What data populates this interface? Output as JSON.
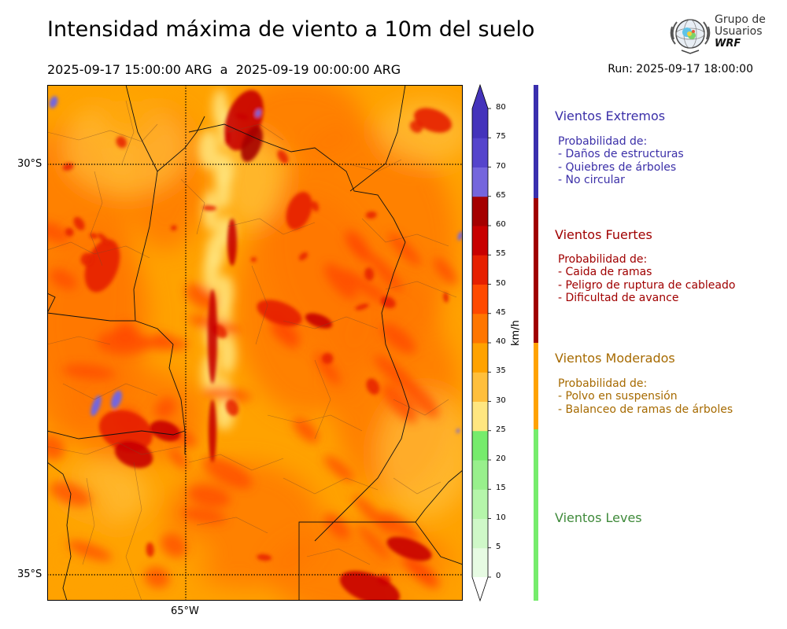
{
  "header": {
    "title": "Intensidad máxima de viento a 10m del suelo",
    "period": "2025-09-17 15:00:00 ARG  a  2025-09-19 00:00:00 ARG",
    "run": "Run: 2025-09-17 18:00:00"
  },
  "logo": {
    "line1": "Grupo de",
    "line2": "Usuarios",
    "line3": "WRF"
  },
  "map": {
    "lat_labels": [
      "30°S",
      "35°S"
    ],
    "lon_labels": [
      "65°W"
    ]
  },
  "colorbar": {
    "unit": "km/h",
    "ticks": [
      "0",
      "5",
      "10",
      "15",
      "20",
      "25",
      "30",
      "35",
      "40",
      "45",
      "50",
      "55",
      "60",
      "65",
      "70",
      "75",
      "80"
    ],
    "colors": [
      "#e7fbe3",
      "#cff8c8",
      "#b5f5aa",
      "#98f08c",
      "#76ec6c",
      "#ffe680",
      "#ffbf3c",
      "#ffa200",
      "#ff7600",
      "#ff4a00",
      "#e62000",
      "#c80000",
      "#a50000",
      "#7566dd",
      "#5544cc",
      "#4433bb"
    ]
  },
  "categories": [
    {
      "title": "Vientos Extremos",
      "color": "#3b2fa8",
      "bar_color": "#3a2fae",
      "lines": [
        "Probabilidad de:",
        "- Daños de estructuras",
        "- Quiebres de árboles",
        "- No circular"
      ]
    },
    {
      "title": "Vientos Fuertes",
      "color": "#a00000",
      "bar_color": "#a00000",
      "lines": [
        "Probabilidad de:",
        "- Caida de ramas",
        "- Peligro de ruptura de cableado",
        "- Dificultad de avance"
      ]
    },
    {
      "title": "Vientos Moderados",
      "color": "#a66a00",
      "bar_color": "#ffa200",
      "lines": [
        "Probabilidad de:",
        "- Polvo en suspensión",
        "- Balanceo de ramas de árboles"
      ]
    },
    {
      "title": "Vientos Leves",
      "color": "#3f8a3a",
      "bar_color": "#76ec6c",
      "lines": []
    }
  ]
}
